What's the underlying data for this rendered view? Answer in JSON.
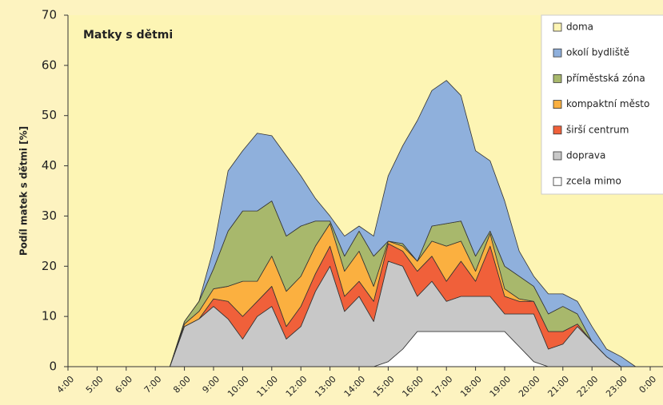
{
  "chart_data": {
    "type": "stacked_area",
    "title": "Matky s dětmi",
    "ylabel": "Podíl matek s dětmi [%]",
    "x": [
      4,
      4.5,
      5,
      5.5,
      6,
      6.5,
      7,
      7.5,
      8,
      8.5,
      9,
      9.5,
      10,
      10.5,
      11,
      11.5,
      12,
      12.5,
      13,
      13.5,
      14,
      14.5,
      15,
      15.5,
      16,
      16.5,
      17,
      17.5,
      18,
      18.5,
      19,
      19.5,
      20,
      20.5,
      21,
      21.5,
      22,
      22.5,
      23,
      23.5,
      24
    ],
    "xlim": [
      4,
      24
    ],
    "xticks": [
      {
        "value": 4,
        "label": "4:00"
      },
      {
        "value": 5,
        "label": "5:00"
      },
      {
        "value": 6,
        "label": "6:00"
      },
      {
        "value": 7,
        "label": "7:00"
      },
      {
        "value": 8,
        "label": "8:00"
      },
      {
        "value": 9,
        "label": "9:00"
      },
      {
        "value": 10,
        "label": "10:00"
      },
      {
        "value": 11,
        "label": "11:00"
      },
      {
        "value": 12,
        "label": "12:00"
      },
      {
        "value": 13,
        "label": "13:00"
      },
      {
        "value": 14,
        "label": "14:00"
      },
      {
        "value": 15,
        "label": "15:00"
      },
      {
        "value": 16,
        "label": "16:00"
      },
      {
        "value": 17,
        "label": "17:00"
      },
      {
        "value": 18,
        "label": "18:00"
      },
      {
        "value": 19,
        "label": "19:00"
      },
      {
        "value": 20,
        "label": "20:00"
      },
      {
        "value": 21,
        "label": "21:00"
      },
      {
        "value": 22,
        "label": "22:00"
      },
      {
        "value": 23,
        "label": "23:00"
      },
      {
        "value": 24,
        "label": "0:00"
      }
    ],
    "ylim": [
      0,
      70
    ],
    "yticks": [
      0,
      10,
      20,
      30,
      40,
      50,
      60,
      70
    ],
    "legend": "top-right",
    "series": [
      {
        "name": "doma",
        "color": "#fdf5b4"
      },
      {
        "name": "okolí bydliště",
        "color": "#8fb0dc",
        "values": [
          0,
          0,
          0,
          0,
          0,
          0,
          0,
          0,
          0,
          0,
          4,
          12,
          12,
          15.5,
          13,
          16,
          10,
          4.5,
          1,
          4,
          1,
          4,
          13,
          19.5,
          28,
          27,
          28.5,
          25,
          21,
          14,
          13,
          5,
          2,
          4,
          2.5,
          2.5,
          3,
          1.5,
          2,
          0,
          0
        ]
      },
      {
        "name": "příměstská zóna",
        "color": "#a8b86c",
        "values": [
          0,
          0,
          0,
          0,
          0,
          0,
          0,
          0,
          0.5,
          2,
          4,
          11,
          14,
          14,
          11,
          11,
          10,
          5,
          0.5,
          3,
          4,
          6,
          0,
          0.5,
          0,
          3,
          4.5,
          4,
          3,
          0.5,
          4.5,
          4.5,
          3,
          3.5,
          5,
          2,
          0,
          0,
          0,
          0,
          0
        ]
      },
      {
        "name": "kompaktní město",
        "color": "#fbb040",
        "values": [
          0,
          0,
          0,
          0,
          0,
          0,
          0,
          0,
          0.5,
          1.5,
          2,
          3,
          7,
          4,
          6,
          7,
          6,
          5.5,
          4.5,
          5,
          6,
          3,
          0.5,
          1,
          2,
          3,
          7,
          4,
          2,
          2.5,
          1.5,
          0.5,
          0,
          0,
          0,
          0,
          0,
          0,
          0,
          0,
          0
        ]
      },
      {
        "name": "širší centrum",
        "color": "#f0603a",
        "values": [
          0,
          0,
          0,
          0,
          0,
          0,
          0,
          0,
          0,
          0,
          1.5,
          3.5,
          4.5,
          3,
          4,
          2.5,
          4,
          3.5,
          4,
          3,
          3,
          4,
          3.5,
          3,
          5,
          5,
          4,
          7,
          3,
          10,
          3.5,
          2.5,
          2.5,
          3.5,
          2.5,
          0.5,
          0,
          0,
          0,
          0,
          0
        ]
      },
      {
        "name": "doprava",
        "color": "#c8c8c8",
        "values": [
          0,
          0,
          0,
          0,
          0,
          0,
          0,
          0,
          8,
          9.5,
          12,
          9.5,
          5.5,
          10,
          12,
          5.5,
          8,
          15,
          20,
          11,
          14,
          9,
          20,
          16.5,
          7,
          10,
          6,
          7,
          7,
          7,
          3.5,
          6.5,
          9.5,
          3.5,
          4.5,
          8,
          5,
          2,
          0,
          0,
          0
        ]
      },
      {
        "name": "zcela mimo",
        "color": "#ffffff",
        "values": [
          0,
          0,
          0,
          0,
          0,
          0,
          0,
          0,
          0,
          0,
          0,
          0,
          0,
          0,
          0,
          0,
          0,
          0,
          0,
          0,
          0,
          0,
          1,
          3.5,
          7,
          7,
          7,
          7,
          7,
          7,
          7,
          4,
          1,
          0,
          0,
          0,
          0,
          0,
          0,
          0,
          0
        ]
      }
    ]
  }
}
